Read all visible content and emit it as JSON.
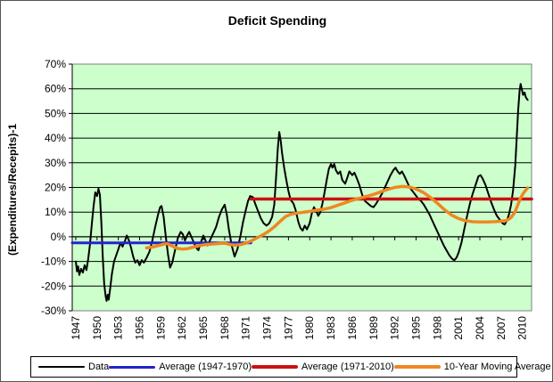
{
  "chart_data": {
    "type": "line",
    "title": "Deficit Spending",
    "xlabel": "",
    "ylabel": "(Expenditures/Recepits)-1",
    "ylim": [
      -30,
      70
    ],
    "yticks": [
      70,
      60,
      50,
      40,
      30,
      20,
      10,
      0,
      -10,
      -20,
      -30
    ],
    "ytick_suffix": "%",
    "xlim": [
      1946.5,
      2011.3
    ],
    "xticks": [
      1947,
      1950,
      1953,
      1956,
      1959,
      1962,
      1965,
      1968,
      1971,
      1974,
      1977,
      1980,
      1983,
      1986,
      1989,
      1992,
      1995,
      1998,
      2001,
      2004,
      2007,
      2010
    ],
    "grid": "horizontal",
    "grid_color": "#000000",
    "plot_bg": "#ccffcc",
    "plot_border_color": "#7f7f7f",
    "axis_color": "#000000",
    "category_axis_at": 0,
    "legend_position": "bottom",
    "series": [
      {
        "name": "Data",
        "color": "#000000",
        "width": 2,
        "points": [
          [
            1947.0,
            -10
          ],
          [
            1947.17,
            -14
          ],
          [
            1947.33,
            -12
          ],
          [
            1947.5,
            -15.5
          ],
          [
            1947.75,
            -13
          ],
          [
            1948.0,
            -14.5
          ],
          [
            1948.25,
            -11.5
          ],
          [
            1948.5,
            -13.5
          ],
          [
            1948.75,
            -9
          ],
          [
            1949.0,
            -3
          ],
          [
            1949.25,
            5
          ],
          [
            1949.5,
            12
          ],
          [
            1949.75,
            18
          ],
          [
            1950.0,
            16.5
          ],
          [
            1950.2,
            19.5
          ],
          [
            1950.4,
            17
          ],
          [
            1950.6,
            6
          ],
          [
            1950.8,
            -8
          ],
          [
            1951.0,
            -19
          ],
          [
            1951.2,
            -24
          ],
          [
            1951.35,
            -26
          ],
          [
            1951.5,
            -23.5
          ],
          [
            1951.65,
            -25.5
          ],
          [
            1951.85,
            -21
          ],
          [
            1952.1,
            -15
          ],
          [
            1952.4,
            -10
          ],
          [
            1952.7,
            -7.5
          ],
          [
            1953.0,
            -5
          ],
          [
            1953.3,
            -2.5
          ],
          [
            1953.6,
            -4
          ],
          [
            1953.9,
            -2
          ],
          [
            1954.2,
            0.5
          ],
          [
            1954.5,
            -1.5
          ],
          [
            1954.8,
            -4.5
          ],
          [
            1955.1,
            -8
          ],
          [
            1955.4,
            -10.5
          ],
          [
            1955.7,
            -9.5
          ],
          [
            1956.0,
            -11.5
          ],
          [
            1956.3,
            -9.5
          ],
          [
            1956.6,
            -10.5
          ],
          [
            1957.0,
            -8.5
          ],
          [
            1957.4,
            -6
          ],
          [
            1957.8,
            -1.5
          ],
          [
            1958.2,
            4
          ],
          [
            1958.6,
            9
          ],
          [
            1958.9,
            12
          ],
          [
            1959.1,
            12.5
          ],
          [
            1959.4,
            8
          ],
          [
            1959.7,
            0
          ],
          [
            1960.0,
            -7
          ],
          [
            1960.3,
            -12.5
          ],
          [
            1960.6,
            -10.5
          ],
          [
            1961.0,
            -5.5
          ],
          [
            1961.4,
            -0.5
          ],
          [
            1961.8,
            2
          ],
          [
            1962.1,
            1
          ],
          [
            1962.4,
            -1.5
          ],
          [
            1962.7,
            0.5
          ],
          [
            1963.0,
            2
          ],
          [
            1963.3,
            0
          ],
          [
            1963.6,
            -2
          ],
          [
            1964.0,
            -4.5
          ],
          [
            1964.3,
            -5.5
          ],
          [
            1964.6,
            -2.5
          ],
          [
            1965.0,
            0.5
          ],
          [
            1965.3,
            -1.5
          ],
          [
            1965.6,
            -3.5
          ],
          [
            1966.0,
            -1
          ],
          [
            1966.4,
            1.5
          ],
          [
            1966.8,
            4
          ],
          [
            1967.2,
            8
          ],
          [
            1967.6,
            11
          ],
          [
            1968.0,
            13
          ],
          [
            1968.3,
            9
          ],
          [
            1968.6,
            3
          ],
          [
            1969.0,
            -3.5
          ],
          [
            1969.4,
            -8
          ],
          [
            1969.8,
            -5
          ],
          [
            1970.2,
            0
          ],
          [
            1970.6,
            6
          ],
          [
            1971.0,
            11
          ],
          [
            1971.3,
            14.5
          ],
          [
            1971.6,
            16.5
          ],
          [
            1972.0,
            16
          ],
          [
            1972.3,
            13.5
          ],
          [
            1972.7,
            10.5
          ],
          [
            1973.1,
            7.5
          ],
          [
            1973.5,
            5.5
          ],
          [
            1973.9,
            4.5
          ],
          [
            1974.3,
            5.5
          ],
          [
            1974.7,
            8
          ],
          [
            1975.0,
            13
          ],
          [
            1975.25,
            24
          ],
          [
            1975.5,
            36
          ],
          [
            1975.7,
            42.5
          ],
          [
            1975.9,
            39
          ],
          [
            1976.1,
            34
          ],
          [
            1976.4,
            28
          ],
          [
            1976.7,
            23
          ],
          [
            1977.0,
            18.5
          ],
          [
            1977.3,
            15
          ],
          [
            1977.7,
            13.5
          ],
          [
            1978.0,
            11
          ],
          [
            1978.4,
            6
          ],
          [
            1978.7,
            3.5
          ],
          [
            1979.0,
            2.5
          ],
          [
            1979.3,
            4.5
          ],
          [
            1979.6,
            3
          ],
          [
            1980.0,
            5.5
          ],
          [
            1980.3,
            9.5
          ],
          [
            1980.6,
            12
          ],
          [
            1980.9,
            10.5
          ],
          [
            1981.2,
            8.5
          ],
          [
            1981.5,
            10
          ],
          [
            1981.8,
            13.5
          ],
          [
            1982.1,
            18
          ],
          [
            1982.4,
            23
          ],
          [
            1982.7,
            27.5
          ],
          [
            1983.0,
            29.5
          ],
          [
            1983.2,
            28
          ],
          [
            1983.45,
            29.5
          ],
          [
            1983.7,
            27
          ],
          [
            1984.0,
            25.5
          ],
          [
            1984.3,
            26.5
          ],
          [
            1984.6,
            23
          ],
          [
            1985.0,
            21.5
          ],
          [
            1985.3,
            24
          ],
          [
            1985.6,
            26.5
          ],
          [
            1986.0,
            25
          ],
          [
            1986.3,
            26
          ],
          [
            1986.6,
            24
          ],
          [
            1987.0,
            21
          ],
          [
            1987.4,
            17
          ],
          [
            1987.8,
            14.5
          ],
          [
            1988.2,
            13.5
          ],
          [
            1988.6,
            12.5
          ],
          [
            1989.0,
            12
          ],
          [
            1989.4,
            13.5
          ],
          [
            1989.8,
            15.5
          ],
          [
            1990.2,
            17.5
          ],
          [
            1990.6,
            20
          ],
          [
            1991.0,
            22.5
          ],
          [
            1991.4,
            25
          ],
          [
            1991.8,
            27
          ],
          [
            1992.1,
            28
          ],
          [
            1992.4,
            26.5
          ],
          [
            1992.7,
            25.5
          ],
          [
            1993.0,
            26.5
          ],
          [
            1993.3,
            25
          ],
          [
            1993.7,
            22.5
          ],
          [
            1994.1,
            20
          ],
          [
            1994.5,
            18.5
          ],
          [
            1994.9,
            17
          ],
          [
            1995.3,
            15.5
          ],
          [
            1995.7,
            14.5
          ],
          [
            1996.1,
            13
          ],
          [
            1996.5,
            11
          ],
          [
            1996.9,
            9
          ],
          [
            1997.3,
            6.5
          ],
          [
            1997.7,
            4
          ],
          [
            1998.1,
            1.5
          ],
          [
            1998.5,
            -1
          ],
          [
            1998.9,
            -3.5
          ],
          [
            1999.3,
            -5.5
          ],
          [
            1999.7,
            -7.5
          ],
          [
            2000.1,
            -9
          ],
          [
            2000.4,
            -9.5
          ],
          [
            2000.7,
            -8.5
          ],
          [
            2001.0,
            -6.5
          ],
          [
            2001.4,
            -2.5
          ],
          [
            2001.8,
            3
          ],
          [
            2002.2,
            8.5
          ],
          [
            2002.6,
            13.5
          ],
          [
            2003.0,
            17.5
          ],
          [
            2003.4,
            21
          ],
          [
            2003.8,
            24.5
          ],
          [
            2004.1,
            25
          ],
          [
            2004.4,
            23.5
          ],
          [
            2004.8,
            21
          ],
          [
            2005.2,
            17.5
          ],
          [
            2005.6,
            14
          ],
          [
            2006.0,
            11
          ],
          [
            2006.4,
            8.5
          ],
          [
            2006.8,
            7
          ],
          [
            2007.2,
            5.5
          ],
          [
            2007.5,
            5
          ],
          [
            2007.8,
            6.5
          ],
          [
            2008.1,
            9
          ],
          [
            2008.4,
            13
          ],
          [
            2008.7,
            19
          ],
          [
            2009.0,
            29
          ],
          [
            2009.2,
            40
          ],
          [
            2009.4,
            51
          ],
          [
            2009.6,
            59
          ],
          [
            2009.75,
            62
          ],
          [
            2009.9,
            60
          ],
          [
            2010.1,
            57.5
          ],
          [
            2010.3,
            58.5
          ],
          [
            2010.5,
            56.5
          ],
          [
            2010.75,
            55.5
          ]
        ]
      },
      {
        "name": "Average (1947-1970)",
        "color": "#2323cc",
        "width": 3,
        "value": -2.5,
        "points": [
          [
            1946.5,
            -2.5
          ],
          [
            1971.7,
            -2.5
          ]
        ]
      },
      {
        "name": "Average (1971-2010)",
        "color": "#cc1111",
        "width": 3.5,
        "value": 15.3,
        "points": [
          [
            1971.7,
            15.3
          ],
          [
            2011.3,
            15.3
          ]
        ]
      },
      {
        "name": "10-Year Moving Average",
        "color": "#ee8822",
        "width": 3.5,
        "points": [
          [
            1957.0,
            -4.5
          ],
          [
            1957.8,
            -4.2
          ],
          [
            1958.6,
            -3.6
          ],
          [
            1959.4,
            -3.0
          ],
          [
            1959.9,
            -2.8
          ],
          [
            1960.5,
            -3.6
          ],
          [
            1961.2,
            -4.6
          ],
          [
            1962.0,
            -5.0
          ],
          [
            1962.8,
            -4.8
          ],
          [
            1963.6,
            -4.2
          ],
          [
            1964.4,
            -3.6
          ],
          [
            1965.2,
            -3.2
          ],
          [
            1966.0,
            -3.0
          ],
          [
            1966.8,
            -2.8
          ],
          [
            1967.6,
            -2.6
          ],
          [
            1968.2,
            -2.7
          ],
          [
            1968.8,
            -3.2
          ],
          [
            1969.5,
            -3.4
          ],
          [
            1970.2,
            -3.2
          ],
          [
            1971.0,
            -2.6
          ],
          [
            1971.8,
            -1.6
          ],
          [
            1972.6,
            -0.4
          ],
          [
            1973.4,
            0.8
          ],
          [
            1974.2,
            2.2
          ],
          [
            1975.0,
            4.0
          ],
          [
            1975.8,
            6.2
          ],
          [
            1976.6,
            8.2
          ],
          [
            1977.4,
            9.2
          ],
          [
            1978.2,
            9.6
          ],
          [
            1979.0,
            9.9
          ],
          [
            1980.0,
            10.3
          ],
          [
            1981.0,
            10.8
          ],
          [
            1982.0,
            11.2
          ],
          [
            1983.0,
            11.8
          ],
          [
            1984.0,
            12.8
          ],
          [
            1985.0,
            13.8
          ],
          [
            1986.0,
            14.8
          ],
          [
            1987.0,
            15.6
          ],
          [
            1988.0,
            16.4
          ],
          [
            1989.0,
            17.2
          ],
          [
            1990.0,
            18.2
          ],
          [
            1991.0,
            19.2
          ],
          [
            1992.0,
            20.0
          ],
          [
            1993.0,
            20.4
          ],
          [
            1994.0,
            20.2
          ],
          [
            1995.0,
            19.4
          ],
          [
            1996.0,
            18.0
          ],
          [
            1997.0,
            16.0
          ],
          [
            1998.0,
            13.6
          ],
          [
            1999.0,
            11.0
          ],
          [
            2000.0,
            8.8
          ],
          [
            2001.0,
            7.4
          ],
          [
            2002.0,
            6.5
          ],
          [
            2003.0,
            6.1
          ],
          [
            2004.0,
            6.0
          ],
          [
            2005.0,
            6.0
          ],
          [
            2006.0,
            6.1
          ],
          [
            2007.0,
            6.3
          ],
          [
            2007.8,
            6.6
          ],
          [
            2008.4,
            7.8
          ],
          [
            2008.9,
            9.8
          ],
          [
            2009.3,
            12.5
          ],
          [
            2009.7,
            15.5
          ],
          [
            2010.1,
            17.5
          ],
          [
            2010.5,
            19.0
          ],
          [
            2010.75,
            19.8
          ]
        ]
      }
    ]
  }
}
